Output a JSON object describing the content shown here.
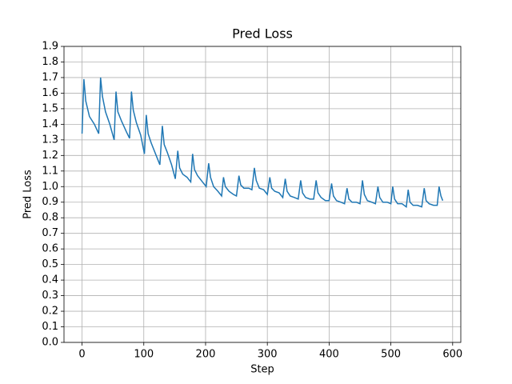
{
  "chart_data": {
    "type": "line",
    "title": "Pred Loss",
    "xlabel": "Step",
    "ylabel": "Pred Loss",
    "x": [
      0,
      3,
      6,
      12,
      20,
      27,
      30,
      33,
      38,
      45,
      52,
      55,
      58,
      64,
      72,
      77,
      80,
      83,
      88,
      95,
      101,
      104,
      107,
      112,
      120,
      126,
      130,
      133,
      138,
      145,
      151,
      155,
      158,
      163,
      170,
      176,
      179,
      182,
      187,
      195,
      201,
      205,
      208,
      213,
      220,
      226,
      229,
      232,
      238,
      245,
      250,
      254,
      257,
      262,
      270,
      275,
      279,
      282,
      287,
      294,
      300,
      304,
      307,
      312,
      319,
      325,
      329,
      332,
      337,
      344,
      350,
      354,
      357,
      362,
      369,
      375,
      379,
      382,
      387,
      394,
      400,
      404,
      407,
      412,
      419,
      425,
      429,
      432,
      437,
      444,
      450,
      454,
      457,
      462,
      469,
      475,
      479,
      482,
      487,
      494,
      500,
      503,
      506,
      511,
      518,
      525,
      528,
      531,
      536,
      543,
      550,
      554,
      557,
      562,
      569,
      575,
      578,
      581,
      584
    ],
    "series": [
      {
        "name": "Pred Loss",
        "color": "#1f77b4",
        "values": [
          1.34,
          1.69,
          1.55,
          1.45,
          1.4,
          1.34,
          1.7,
          1.58,
          1.48,
          1.4,
          1.3,
          1.61,
          1.48,
          1.42,
          1.35,
          1.31,
          1.61,
          1.49,
          1.41,
          1.33,
          1.21,
          1.46,
          1.34,
          1.28,
          1.2,
          1.14,
          1.39,
          1.27,
          1.22,
          1.14,
          1.05,
          1.23,
          1.12,
          1.08,
          1.06,
          1.03,
          1.21,
          1.11,
          1.07,
          1.03,
          1.0,
          1.15,
          1.06,
          1.0,
          0.97,
          0.94,
          1.06,
          1.0,
          0.97,
          0.95,
          0.94,
          1.07,
          1.01,
          0.99,
          0.99,
          0.98,
          1.12,
          1.04,
          0.99,
          0.98,
          0.95,
          1.06,
          0.99,
          0.97,
          0.96,
          0.93,
          1.05,
          0.97,
          0.94,
          0.93,
          0.92,
          1.04,
          0.96,
          0.93,
          0.92,
          0.92,
          1.04,
          0.96,
          0.93,
          0.91,
          0.91,
          1.02,
          0.94,
          0.91,
          0.9,
          0.89,
          0.99,
          0.92,
          0.9,
          0.9,
          0.89,
          1.04,
          0.95,
          0.91,
          0.9,
          0.89,
          1.0,
          0.93,
          0.9,
          0.9,
          0.89,
          1.0,
          0.92,
          0.89,
          0.89,
          0.87,
          0.98,
          0.9,
          0.88,
          0.88,
          0.87,
          0.99,
          0.91,
          0.89,
          0.88,
          0.88,
          1.0,
          0.94,
          0.91
        ]
      }
    ],
    "xlim": [
      -29.2,
      613.2
    ],
    "ylim": [
      0,
      1.9
    ],
    "xticks": [
      0,
      100,
      200,
      300,
      400,
      500,
      600
    ],
    "yticks": [
      {
        "value": 0,
        "label": "0.0"
      },
      0.1,
      0.2,
      0.3,
      0.4,
      0.5,
      0.6,
      0.7,
      0.8,
      0.9,
      {
        "value": 1,
        "label": "1.0"
      },
      1.1,
      1.2,
      1.3,
      1.4,
      1.5,
      1.6,
      1.7,
      1.8,
      1.9
    ],
    "grid": true
  }
}
